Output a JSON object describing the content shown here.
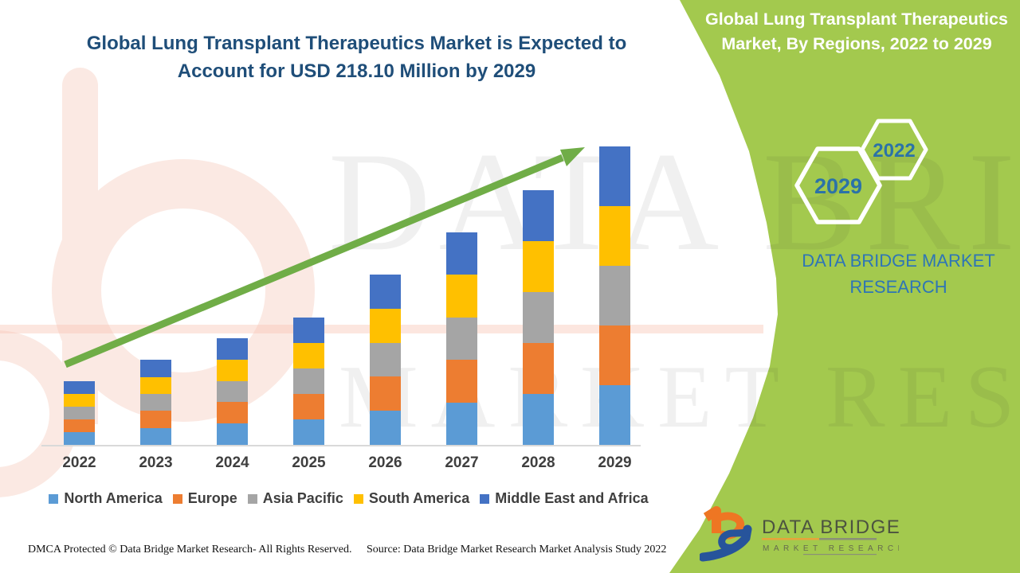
{
  "chart_data": {
    "type": "bar",
    "stacked": true,
    "title": "Global Lung Transplant Therapeutics Market is Expected to Account for USD 218.10 Million by 2029",
    "unit": "USD Million",
    "highlight_year": "2029",
    "highlight_value": "USD 218.10 Million",
    "categories": [
      "2022",
      "2023",
      "2024",
      "2025",
      "2026",
      "2027",
      "2028",
      "2029"
    ],
    "series": [
      {
        "name": "North America",
        "color": "#5B9BD5",
        "values": [
          9.3,
          12.4,
          15.6,
          18.6,
          24.9,
          31.1,
          37.2,
          43.6
        ]
      },
      {
        "name": "Europe",
        "color": "#ED7D31",
        "values": [
          9.3,
          12.4,
          15.6,
          18.6,
          24.9,
          31.1,
          37.2,
          43.6
        ]
      },
      {
        "name": "Asia Pacific",
        "color": "#A5A5A5",
        "values": [
          9.3,
          12.4,
          15.6,
          18.6,
          24.9,
          31.1,
          37.2,
          43.6
        ]
      },
      {
        "name": "South America",
        "color": "#FFC000",
        "values": [
          9.3,
          12.4,
          15.6,
          18.6,
          24.9,
          31.1,
          37.2,
          43.6
        ]
      },
      {
        "name": "Middle East and Africa",
        "color": "#4472C4",
        "values": [
          9.3,
          12.4,
          15.6,
          18.6,
          24.9,
          31.1,
          37.2,
          43.7
        ]
      }
    ],
    "totals": [
      46.5,
      62.0,
      78.0,
      93.0,
      124.5,
      155.5,
      186.0,
      218.1
    ],
    "y_axis_visible": false,
    "grid": false,
    "legend_position": "bottom",
    "trend_arrow": true
  },
  "side_panel": {
    "heading": "Global Lung Transplant Therapeutics Market, By Regions, 2022 to 2029",
    "hexagons": [
      {
        "year": "2029"
      },
      {
        "year": "2022"
      }
    ],
    "brand_text": "DATA BRIDGE MARKET RESEARCH"
  },
  "watermark": {
    "line1": "DATA BRIDGE",
    "line2": "MARKET RESEARCH"
  },
  "logo": {
    "title": "DATA BRIDGE",
    "subtitle": "MARKET RESEARCH"
  },
  "footer": {
    "dmca": "DMCA Protected © Data Bridge Market Research- All Rights Reserved.",
    "source": "Source: Data Bridge Market Research Market Analysis Study 2022"
  },
  "colors": {
    "panel_green": "#A3C94E",
    "arrow_green": "#70AD47",
    "title_blue": "#1F4E79",
    "brand_blue": "#2E75B6",
    "hexagon_year_text": "#2B72A8",
    "axis_text": "#3F3F3F",
    "watermark_peach": "#FBE9E3"
  }
}
